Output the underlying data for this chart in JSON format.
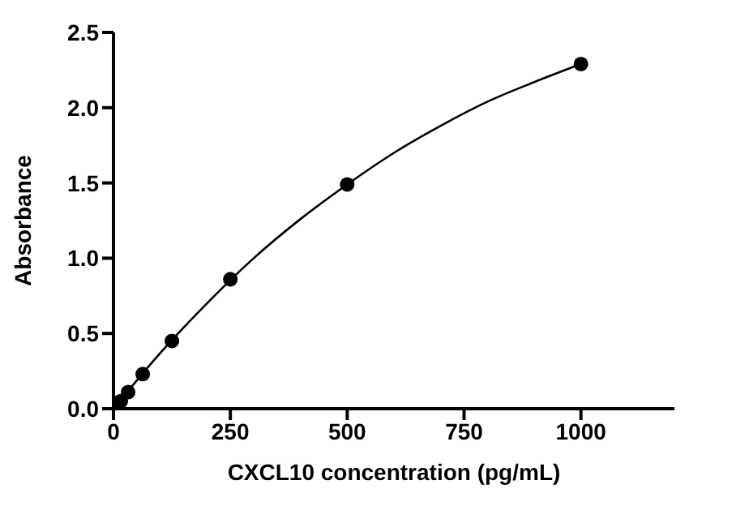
{
  "chart_data": {
    "type": "scatter",
    "xlabel": "CXCL10 concentration (pg/mL)",
    "ylabel": "Absorbance",
    "xlim": [
      0,
      1200
    ],
    "xticks": [
      0,
      250,
      500,
      750,
      1000
    ],
    "ylim": [
      0,
      2.5
    ],
    "yticks": [
      {
        "value": 0,
        "label": "0.0"
      },
      0.5,
      {
        "value": 1,
        "label": "1.0"
      },
      1.5,
      {
        "value": 2,
        "label": "2.0"
      },
      2.5
    ],
    "grid": false,
    "legend": false,
    "marker": "circle",
    "series": [
      {
        "color": "#000000",
        "x": [
          15.6,
          31.25,
          62.5,
          125,
          250,
          500,
          1000
        ],
        "values": [
          0.05,
          0.11,
          0.23,
          0.45,
          0.86,
          1.49,
          2.29
        ]
      },
      {
        "type": "line",
        "color": "#000000",
        "marker": "none",
        "line_style": "solid",
        "x": [
          0,
          100,
          200,
          300,
          400,
          500,
          600,
          700,
          800,
          900,
          1000
        ],
        "values": [
          0,
          0.37,
          0.7,
          1.0,
          1.26,
          1.49,
          1.7,
          1.88,
          2.04,
          2.17,
          2.29
        ]
      }
    ]
  }
}
